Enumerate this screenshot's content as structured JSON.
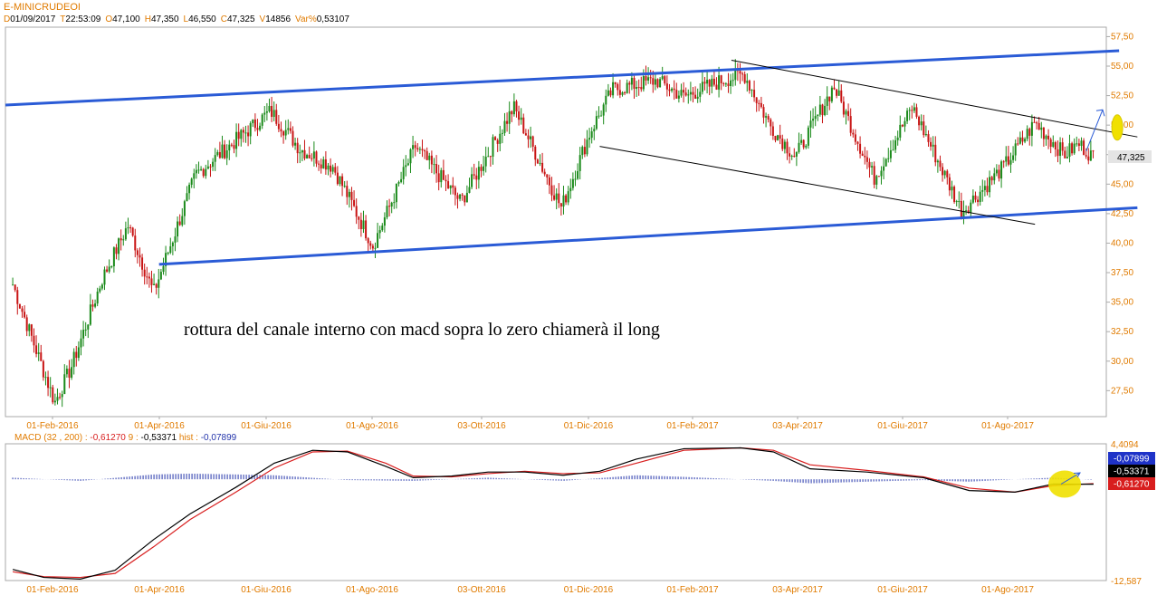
{
  "header": {
    "symbol": "E-MINICRUDEOI",
    "ohlc": [
      {
        "key": "D",
        "value": "01/09/2017"
      },
      {
        "key": "T",
        "value": "22:53:09"
      },
      {
        "key": "O",
        "value": "47,100"
      },
      {
        "key": "H",
        "value": "47,350"
      },
      {
        "key": "L",
        "value": "46,550"
      },
      {
        "key": "C",
        "value": "47,325"
      },
      {
        "key": "V",
        "value": "14856"
      },
      {
        "key": "Var%",
        "value": "0,53107"
      }
    ]
  },
  "colors": {
    "background": "#ffffff",
    "frame": "#aaaaaa",
    "axis_text": "#e07b00",
    "candle_up": "#1a8a1a",
    "candle_down": "#c81414",
    "channel": "#2a5bd6",
    "trendline": "#000000",
    "macd_line": "#000000",
    "signal_line": "#d81e1e",
    "histogram": "#2233aa",
    "highlight": "#f0e000"
  },
  "chart_data": [
    {
      "type": "candlestick",
      "y_ticks": [
        "57,50",
        "55,00",
        "52,50",
        "50,00",
        "47,50",
        "45,00",
        "42,50",
        "40,00",
        "37,50",
        "35,00",
        "32,50",
        "30,00",
        "27,50"
      ],
      "ylim": [
        25.3,
        58.3
      ],
      "x_ticks": [
        "01-Feb-2016",
        "01-Apr-2016",
        "01-Giu-2016",
        "01-Ago-2016",
        "03-Ott-2016",
        "01-Dic-2016",
        "01-Feb-2017",
        "03-Apr-2017",
        "01-Giu-2017",
        "01-Ago-2017"
      ],
      "last_price_label": "47,325",
      "last_price": 47.325,
      "annotation": "rottura del canale interno con macd sopra lo zero chiamerà il long",
      "key_closes": [
        {
          "date": "2016-01-19",
          "close": 36.5
        },
        {
          "date": "2016-02-11",
          "close": 26.5
        },
        {
          "date": "2016-02-20",
          "close": 29.5
        },
        {
          "date": "2016-03-08",
          "close": 37.0
        },
        {
          "date": "2016-03-22",
          "close": 41.5
        },
        {
          "date": "2016-04-05",
          "close": 35.8
        },
        {
          "date": "2016-04-28",
          "close": 45.8
        },
        {
          "date": "2016-06-08",
          "close": 51.2
        },
        {
          "date": "2016-06-24",
          "close": 48.0
        },
        {
          "date": "2016-07-12",
          "close": 46.5
        },
        {
          "date": "2016-08-03",
          "close": 39.8
        },
        {
          "date": "2016-08-26",
          "close": 48.2
        },
        {
          "date": "2016-09-20",
          "close": 43.5
        },
        {
          "date": "2016-10-19",
          "close": 51.5
        },
        {
          "date": "2016-11-14",
          "close": 43.0
        },
        {
          "date": "2016-11-30",
          "close": 49.5
        },
        {
          "date": "2016-12-12",
          "close": 53.0
        },
        {
          "date": "2017-01-05",
          "close": 53.8
        },
        {
          "date": "2017-01-20",
          "close": 52.4
        },
        {
          "date": "2017-02-10",
          "close": 53.8
        },
        {
          "date": "2017-02-22",
          "close": 54.3
        },
        {
          "date": "2017-03-08",
          "close": 50.0
        },
        {
          "date": "2017-03-22",
          "close": 47.3
        },
        {
          "date": "2017-04-12",
          "close": 53.3
        },
        {
          "date": "2017-05-04",
          "close": 45.5
        },
        {
          "date": "2017-05-25",
          "close": 51.5
        },
        {
          "date": "2017-06-21",
          "close": 42.7
        },
        {
          "date": "2017-07-14",
          "close": 46.5
        },
        {
          "date": "2017-07-31",
          "close": 50.2
        },
        {
          "date": "2017-08-16",
          "close": 47.5
        },
        {
          "date": "2017-08-24",
          "close": 48.4
        },
        {
          "date": "2017-09-01",
          "close": 47.3
        }
      ],
      "channel_upper": [
        {
          "date": "2016-01-15",
          "value": 51.7
        },
        {
          "date": "2017-09-15",
          "value": 56.3
        }
      ],
      "channel_lower": [
        {
          "date": "2016-04-08",
          "value": 38.2
        },
        {
          "date": "2017-09-25",
          "value": 43.0
        }
      ],
      "inner_channel_upper": [
        {
          "date": "2017-02-15",
          "value": 55.5
        },
        {
          "date": "2017-09-25",
          "value": 49.0
        }
      ],
      "inner_channel_lower": [
        {
          "date": "2016-12-05",
          "value": 48.2
        },
        {
          "date": "2017-07-31",
          "value": 41.6
        }
      ]
    },
    {
      "type": "line",
      "legend": {
        "label": "MACD",
        "params": "(32 , 200)",
        "macd": "-0,61270",
        "signal_label": "9",
        "signal": "-0,53371",
        "hist_label": "hist",
        "hist": "-0,07899"
      },
      "y_ticks": [
        "4,4094",
        "-12,587"
      ],
      "ylim": [
        -12.587,
        4.4094
      ],
      "value_badges": [
        {
          "text": "-0,07899",
          "bg": "#1f33c8",
          "fg": "#ffffff"
        },
        {
          "text": "-0,53371",
          "bg": "#000000",
          "fg": "#ffffff"
        },
        {
          "text": "-0,61270",
          "bg": "#d81e1e",
          "fg": "#ffffff"
        }
      ],
      "x_ticks": [
        "01-Feb-2016",
        "01-Apr-2016",
        "01-Giu-2016",
        "01-Ago-2016",
        "03-Ott-2016",
        "01-Dic-2016",
        "01-Feb-2017",
        "03-Apr-2017",
        "01-Giu-2017",
        "01-Ago-2017"
      ],
      "series": [
        {
          "name": "MACD",
          "points": [
            [
              "2016-01-19",
              -11.2
            ],
            [
              "2016-02-05",
              -12.2
            ],
            [
              "2016-02-25",
              -12.4
            ],
            [
              "2016-03-15",
              -11.3
            ],
            [
              "2016-04-05",
              -7.5
            ],
            [
              "2016-04-25",
              -4.3
            ],
            [
              "2016-05-20",
              -1.0
            ],
            [
              "2016-06-10",
              2.0
            ],
            [
              "2016-07-01",
              3.6
            ],
            [
              "2016-07-20",
              3.4
            ],
            [
              "2016-08-10",
              1.6
            ],
            [
              "2016-08-25",
              0.2
            ],
            [
              "2016-09-15",
              0.4
            ],
            [
              "2016-10-05",
              0.9
            ],
            [
              "2016-10-25",
              0.9
            ],
            [
              "2016-11-15",
              0.5
            ],
            [
              "2016-12-05",
              1.0
            ],
            [
              "2016-12-25",
              2.5
            ],
            [
              "2017-01-20",
              3.8
            ],
            [
              "2017-02-20",
              3.9
            ],
            [
              "2017-03-10",
              3.4
            ],
            [
              "2017-03-30",
              1.3
            ],
            [
              "2017-04-30",
              0.9
            ],
            [
              "2017-05-31",
              0.2
            ],
            [
              "2017-06-25",
              -1.4
            ],
            [
              "2017-07-20",
              -1.6
            ],
            [
              "2017-08-10",
              -0.6
            ],
            [
              "2017-09-01",
              -0.6127
            ]
          ]
        },
        {
          "name": "Signal",
          "points": [
            [
              "2016-01-19",
              -11.5
            ],
            [
              "2016-02-05",
              -12.1
            ],
            [
              "2016-02-25",
              -12.2
            ],
            [
              "2016-03-15",
              -11.7
            ],
            [
              "2016-04-05",
              -8.4
            ],
            [
              "2016-04-25",
              -5.0
            ],
            [
              "2016-05-20",
              -1.6
            ],
            [
              "2016-06-10",
              1.4
            ],
            [
              "2016-07-01",
              3.4
            ],
            [
              "2016-07-20",
              3.5
            ],
            [
              "2016-08-10",
              2.0
            ],
            [
              "2016-08-25",
              0.4
            ],
            [
              "2016-09-15",
              0.3
            ],
            [
              "2016-10-05",
              0.7
            ],
            [
              "2016-10-25",
              1.0
            ],
            [
              "2016-11-15",
              0.7
            ],
            [
              "2016-12-05",
              0.8
            ],
            [
              "2016-12-25",
              2.0
            ],
            [
              "2017-01-20",
              3.6
            ],
            [
              "2017-02-20",
              3.9
            ],
            [
              "2017-03-10",
              3.6
            ],
            [
              "2017-03-30",
              1.8
            ],
            [
              "2017-04-30",
              1.1
            ],
            [
              "2017-05-31",
              0.3
            ],
            [
              "2017-06-25",
              -1.1
            ],
            [
              "2017-07-20",
              -1.6
            ],
            [
              "2017-08-10",
              -0.8
            ],
            [
              "2017-09-01",
              -0.5337
            ]
          ]
        },
        {
          "name": "hist",
          "points": [
            [
              "2016-01-19",
              0.2
            ],
            [
              "2016-02-25",
              -0.2
            ],
            [
              "2016-04-05",
              0.6
            ],
            [
              "2016-04-25",
              0.7
            ],
            [
              "2016-05-20",
              0.6
            ],
            [
              "2016-06-10",
              0.5
            ],
            [
              "2016-07-20",
              -0.1
            ],
            [
              "2016-08-25",
              -0.2
            ],
            [
              "2016-10-05",
              0.2
            ],
            [
              "2016-11-15",
              -0.2
            ],
            [
              "2016-12-25",
              0.5
            ],
            [
              "2017-01-20",
              0.3
            ],
            [
              "2017-03-10",
              -0.2
            ],
            [
              "2017-03-30",
              -0.5
            ],
            [
              "2017-05-31",
              -0.1
            ],
            [
              "2017-06-25",
              -0.3
            ],
            [
              "2017-07-20",
              0.0
            ],
            [
              "2017-08-10",
              0.2
            ],
            [
              "2017-09-01",
              -0.079
            ]
          ]
        }
      ]
    }
  ]
}
